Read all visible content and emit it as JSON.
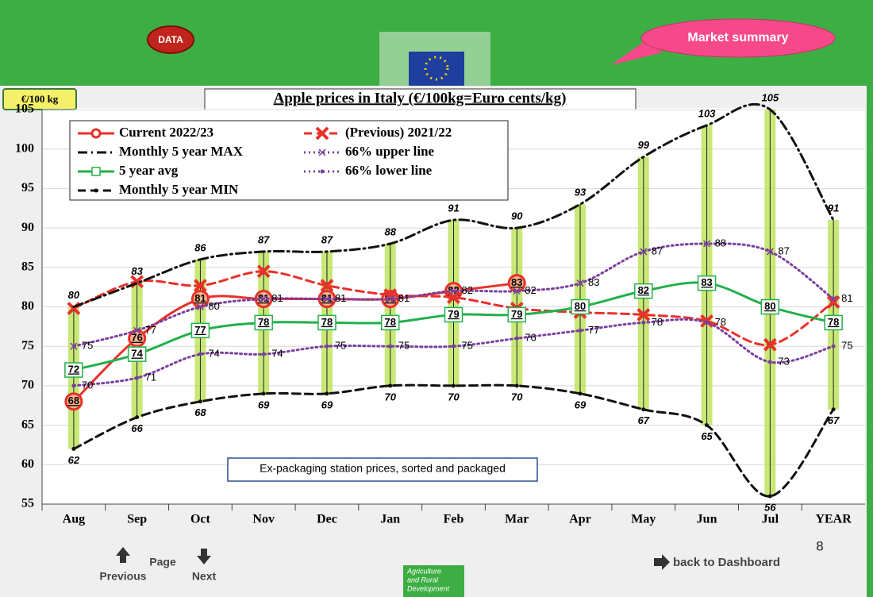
{
  "header": {
    "data_button": "DATA",
    "market_button": "Market summary",
    "unit_badge": "€/100 kg"
  },
  "chart_data": {
    "type": "line",
    "title": "Apple prices in Italy (€/100kg=Euro cents/kg)",
    "note": "Ex-packaging station prices, sorted and packaged",
    "categories": [
      "Aug",
      "Sep",
      "Oct",
      "Nov",
      "Dec",
      "Jan",
      "Feb",
      "Mar",
      "Apr",
      "May",
      "Jun",
      "Jul",
      "YEAR"
    ],
    "ylim": [
      55,
      105
    ],
    "yticks": [
      55,
      60,
      65,
      70,
      75,
      80,
      85,
      90,
      95,
      100,
      105
    ],
    "grid": true,
    "range_bars": {
      "max_series": 2,
      "min_series": 6,
      "color": "#b5e04a"
    },
    "series": [
      {
        "name": "Current 2022/23",
        "color": "#e8312a",
        "dash": "solid",
        "marker": "circle",
        "label": "center",
        "values": [
          68,
          76,
          81,
          81,
          81,
          81,
          82,
          83,
          null,
          null,
          null,
          null,
          null
        ]
      },
      {
        "name": "(Previous) 2021/22",
        "color": "#e8312a",
        "dash": "dashed",
        "marker": "cross",
        "label": "none",
        "values": [
          79.8,
          83.2,
          82.7,
          84.5,
          82.7,
          81.5,
          81.2,
          79.8,
          79.3,
          79.0,
          78.2,
          75.2,
          80.6
        ]
      },
      {
        "name": "Monthly 5 year MAX",
        "color": "#111111",
        "dash": "dashdot",
        "marker": "none",
        "label": "above",
        "values": [
          80,
          83,
          86,
          87,
          87,
          88,
          91,
          90,
          93,
          99,
          103,
          105,
          91
        ]
      },
      {
        "name": "66% upper line",
        "color": "#7a3fa0",
        "dash": "dotted",
        "marker": "x",
        "label": "right",
        "values": [
          75,
          77,
          80,
          81,
          81,
          81,
          82,
          82,
          83,
          87,
          88,
          87,
          81
        ]
      },
      {
        "name": "5 year avg",
        "color": "#22b04b",
        "dash": "solid",
        "marker": "square",
        "label": "center",
        "values": [
          72,
          74,
          77,
          78,
          78,
          78,
          79,
          79,
          80,
          82,
          83,
          80,
          78
        ]
      },
      {
        "name": "66% lower line",
        "color": "#7a3fa0",
        "dash": "dotted",
        "marker": "dot",
        "label": "right",
        "values": [
          70,
          71,
          74,
          74,
          75,
          75,
          75,
          76,
          77,
          78,
          78,
          73,
          75
        ]
      },
      {
        "name": "Monthly 5 year MIN",
        "color": "#111111",
        "dash": "dashed",
        "marker": "dot",
        "label": "below",
        "values": [
          62,
          66,
          68,
          69,
          69,
          70,
          70,
          70,
          69,
          67,
          65,
          56,
          67
        ]
      }
    ]
  },
  "footer": {
    "page": "Page",
    "previous": "Previous",
    "next": "Next",
    "dashboard": "back to Dashboard",
    "page_number": "8",
    "dg_lines": [
      "Agriculture",
      "and Rural",
      "Development"
    ]
  }
}
